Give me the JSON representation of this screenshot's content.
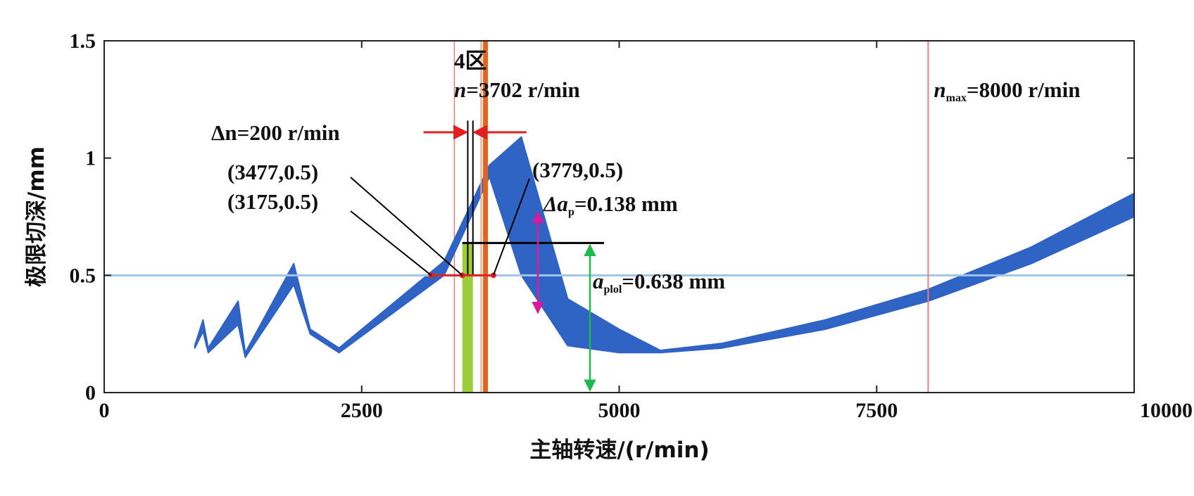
{
  "chart_data": {
    "type": "area",
    "xlabel": "主轴转速/(r/min)",
    "ylabel": "极限切深/mm",
    "xlim": [
      0,
      10000
    ],
    "ylim": [
      0,
      1.5
    ],
    "x_ticks": [
      "0",
      "2500",
      "5000",
      "7500",
      "10000"
    ],
    "y_ticks": [
      "0",
      "0.5",
      "1",
      "1.5"
    ],
    "grid": false,
    "colors": {
      "band": "#2f63c4",
      "reference": "#9ec5e8",
      "speed_line": "#f07a7a",
      "spindle": "#e3641e",
      "window": "#9ccc3a",
      "marker": "#e02020",
      "ap_arrow": "#d81b9e",
      "aplim_arrow": "#1fb84a"
    },
    "stability_lobe_band": {
      "x": [
        880,
        960,
        1010,
        1300,
        1370,
        1840,
        2000,
        2280,
        3300,
        3740,
        4050,
        4500,
        5000,
        5400,
        6000,
        7000,
        8000,
        9000,
        10000
      ],
      "lower": [
        0.19,
        0.26,
        0.17,
        0.29,
        0.15,
        0.46,
        0.25,
        0.17,
        0.5,
        0.92,
        0.5,
        0.2,
        0.17,
        0.17,
        0.19,
        0.27,
        0.39,
        0.55,
        0.75
      ],
      "upper": [
        0.2,
        0.31,
        0.19,
        0.39,
        0.17,
        0.55,
        0.27,
        0.19,
        0.56,
        0.97,
        1.09,
        0.4,
        0.27,
        0.18,
        0.21,
        0.31,
        0.44,
        0.62,
        0.85
      ]
    },
    "reference_depth": 0.5,
    "zone_label": "4区",
    "spindle_speed": {
      "value": 3702,
      "label_n": "n",
      "label_rest": "=3702 r/min"
    },
    "max_speed": {
      "value": 8000,
      "label_n": "n",
      "label_sub": "max",
      "label_rest": "=8000 r/min"
    },
    "delta_n": {
      "label": "Δn=200 r/min",
      "from": 3580,
      "to": 3780
    },
    "selected_window": {
      "from": 3477,
      "to": 3580,
      "depth": 0.638
    },
    "points": [
      {
        "label": "(3477,0.5)",
        "x": 3477,
        "y": 0.5
      },
      {
        "label": "(3175,0.5)",
        "x": 3175,
        "y": 0.5
      },
      {
        "label": "(3779,0.5)",
        "x": 3779,
        "y": 0.5
      }
    ],
    "delta_ap": {
      "label_a": "Δa",
      "label_sub": "p",
      "label_rest": "=0.138 mm",
      "value": 0.138
    },
    "ap_lim": {
      "label_a": "a",
      "label_sub": "plol",
      "label_rest": "=0.638 mm",
      "value": 0.638
    }
  }
}
